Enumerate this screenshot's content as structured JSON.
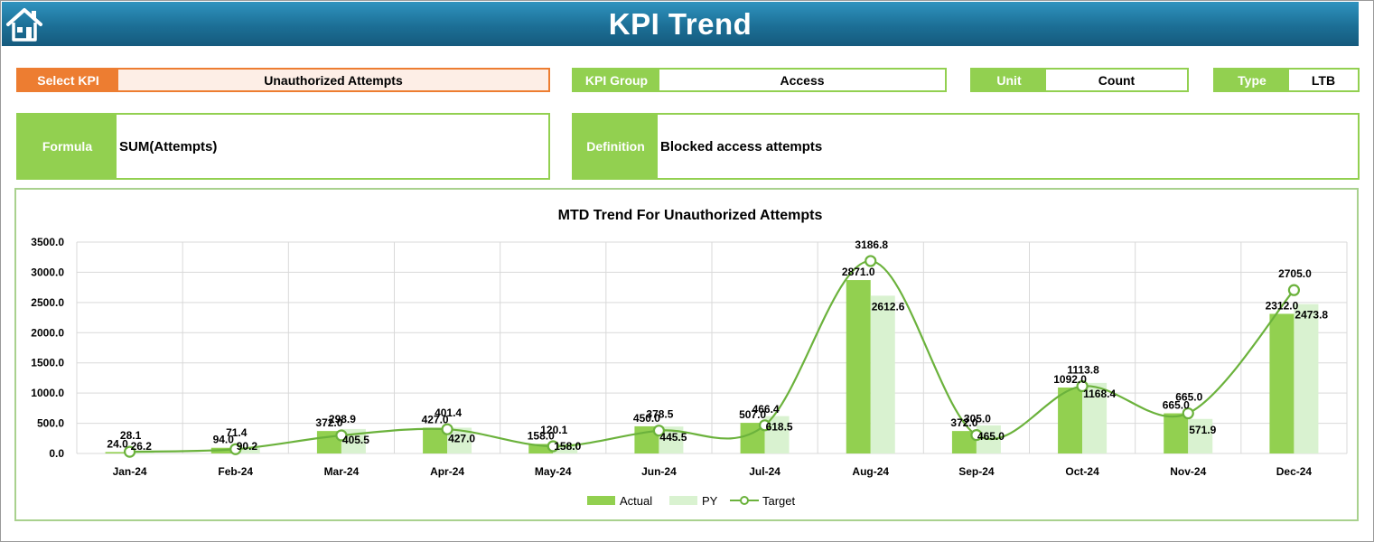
{
  "header": {
    "title": "KPI Trend",
    "home_icon": "home-icon",
    "colors": {
      "banner": "#1c6f96",
      "accent": "#92d050",
      "kpi_accent": "#ed7d31"
    }
  },
  "selectors": {
    "select_kpi": {
      "label": "Select KPI",
      "value": "Unauthorized Attempts"
    },
    "kpi_group": {
      "label": "KPI Group",
      "value": "Access"
    },
    "unit": {
      "label": "Unit",
      "value": "Count"
    },
    "type": {
      "label": "Type",
      "value": "LTB"
    }
  },
  "details": {
    "formula": {
      "label": "Formula",
      "value": "SUM(Attempts)"
    },
    "definition": {
      "label": "Definition",
      "value": "Blocked access attempts"
    }
  },
  "chart_data": {
    "type": "bar",
    "title": "MTD Trend For Unauthorized Attempts",
    "categories": [
      "Jan-24",
      "Feb-24",
      "Mar-24",
      "Apr-24",
      "May-24",
      "Jun-24",
      "Jul-24",
      "Aug-24",
      "Sep-24",
      "Oct-24",
      "Nov-24",
      "Dec-24"
    ],
    "series": [
      {
        "name": "Actual",
        "kind": "bar",
        "color": "#92d050",
        "values": [
          24.0,
          94.0,
          372.0,
          427.0,
          158.0,
          450.0,
          507.0,
          2871.0,
          372.0,
          1092.0,
          665.0,
          2312.0
        ]
      },
      {
        "name": "PY",
        "kind": "bar",
        "color": "#d9f2d0",
        "values": [
          26.2,
          90.2,
          405.5,
          427.0,
          158.0,
          445.5,
          618.5,
          2612.6,
          465.0,
          1168.4,
          571.9,
          2473.8
        ]
      },
      {
        "name": "Target",
        "kind": "line",
        "color": "#6bb23c",
        "values": [
          28.1,
          71.4,
          298.9,
          401.4,
          120.1,
          378.5,
          466.4,
          3186.8,
          305.0,
          1113.8,
          665.0,
          2705.0
        ]
      }
    ],
    "actual_labels": [
      "24.0",
      "94.0",
      "372.0",
      "427.0",
      "158.0",
      "450.0",
      "507.0",
      "2871.0",
      "372.0",
      "1092.0",
      "665.0",
      "2312.0"
    ],
    "py_labels": [
      "26.2",
      "90.2",
      "405.5",
      "427.0",
      "158.0",
      "445.5",
      "618.5",
      "2612.6",
      "465.0",
      "1168.4",
      "571.9",
      "2473.8"
    ],
    "target_labels": [
      "28.1",
      "71.4",
      "298.9",
      "401.4",
      "120.1",
      "378.5",
      "466.4",
      "3186.8",
      "305.0",
      "1113.8",
      "665.0",
      "2705.0"
    ],
    "y_ticks": [
      "0.0",
      "500.0",
      "1000.0",
      "1500.0",
      "2000.0",
      "2500.0",
      "3000.0",
      "3500.0"
    ],
    "ylim": [
      0,
      3500
    ],
    "xlabel": "",
    "ylabel": "",
    "grid": true,
    "legend_position": "bottom"
  }
}
